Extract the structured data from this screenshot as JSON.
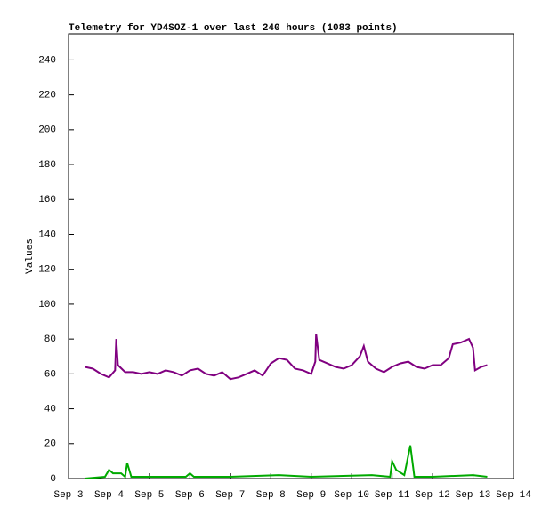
{
  "chart_data": {
    "type": "line",
    "title": "Telemetry for YD4SOZ-1 over last 240 hours (1083 points)",
    "ylabel": "Values",
    "xlim": [
      3,
      14
    ],
    "ylim": [
      0,
      255
    ],
    "xticks": [
      {
        "value": 3,
        "label": "Sep 3"
      },
      {
        "value": 4,
        "label": "Sep 4"
      },
      {
        "value": 5,
        "label": "Sep 5"
      },
      {
        "value": 6,
        "label": "Sep 6"
      },
      {
        "value": 7,
        "label": "Sep 7"
      },
      {
        "value": 8,
        "label": "Sep 8"
      },
      {
        "value": 9,
        "label": "Sep 9"
      },
      {
        "value": 10,
        "label": "Sep 10"
      },
      {
        "value": 11,
        "label": "Sep 11"
      },
      {
        "value": 12,
        "label": "Sep 12"
      },
      {
        "value": 13,
        "label": "Sep 13"
      },
      {
        "value": 14,
        "label": "Sep 14"
      }
    ],
    "yticks": [
      0,
      20,
      40,
      60,
      80,
      100,
      120,
      140,
      160,
      180,
      200,
      220,
      240
    ],
    "series": [
      {
        "color": "#800080",
        "x": [
          3.4,
          3.6,
          3.8,
          4.0,
          4.15,
          4.18,
          4.22,
          4.4,
          4.6,
          4.8,
          5.0,
          5.2,
          5.4,
          5.6,
          5.8,
          6.0,
          6.2,
          6.4,
          6.6,
          6.8,
          7.0,
          7.2,
          7.4,
          7.6,
          7.8,
          8.0,
          8.2,
          8.4,
          8.6,
          8.8,
          9.0,
          9.1,
          9.12,
          9.2,
          9.4,
          9.6,
          9.8,
          10.0,
          10.2,
          10.3,
          10.4,
          10.6,
          10.8,
          11.0,
          11.2,
          11.4,
          11.6,
          11.8,
          12.0,
          12.2,
          12.4,
          12.5,
          12.7,
          12.9,
          13.0,
          13.05,
          13.2,
          13.35
        ],
        "values": [
          64,
          63,
          60,
          58,
          62,
          80,
          65,
          61,
          61,
          60,
          61,
          60,
          62,
          61,
          59,
          62,
          63,
          60,
          59,
          61,
          57,
          58,
          60,
          62,
          59,
          66,
          69,
          68,
          63,
          62,
          60,
          67,
          83,
          68,
          66,
          64,
          63,
          65,
          70,
          76,
          67,
          63,
          61,
          64,
          66,
          67,
          64,
          63,
          65,
          65,
          69,
          77,
          78,
          80,
          75,
          62,
          64,
          65
        ]
      },
      {
        "color": "#00aa00",
        "x": [
          3.4,
          3.9,
          4.0,
          4.1,
          4.3,
          4.4,
          4.45,
          4.55,
          5.0,
          5.9,
          6.0,
          6.1,
          7.0,
          8.2,
          9.0,
          10.5,
          10.95,
          11.0,
          11.1,
          11.3,
          11.45,
          11.55,
          12.0,
          13.0,
          13.35
        ],
        "values": [
          0,
          1,
          5,
          3,
          3,
          1,
          9,
          1,
          1,
          1,
          3,
          1,
          1,
          2,
          1,
          2,
          1,
          10,
          5,
          2,
          19,
          1,
          1,
          2,
          1
        ]
      }
    ]
  }
}
